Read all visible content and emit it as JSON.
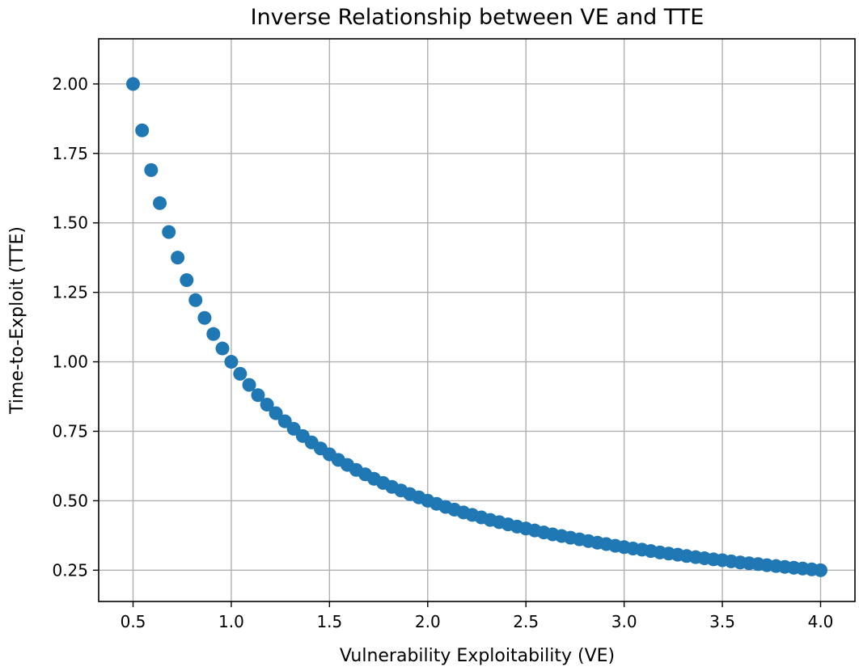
{
  "chart_data": {
    "type": "scatter",
    "title": "Inverse Relationship between VE and TTE",
    "xlabel": "Vulnerability Exploitability (VE)",
    "ylabel": "Time-to-Exploit (TTE)",
    "xlim": [
      0.325,
      4.175
    ],
    "ylim": [
      0.1375,
      2.1625
    ],
    "xticks": [
      0.5,
      1.0,
      1.5,
      2.0,
      2.5,
      3.0,
      3.5,
      4.0
    ],
    "xtick_labels": [
      "0.5",
      "1.0",
      "1.5",
      "2.0",
      "2.5",
      "3.0",
      "3.5",
      "4.0"
    ],
    "yticks": [
      0.25,
      0.5,
      0.75,
      1.0,
      1.25,
      1.5,
      1.75,
      2.0
    ],
    "ytick_labels": [
      "0.25",
      "0.50",
      "0.75",
      "1.00",
      "1.25",
      "1.50",
      "1.75",
      "2.00"
    ],
    "grid": true,
    "marker_color": "#1f77b4",
    "series": [
      {
        "name": "TTE = 1/VE",
        "x_start": 0.5,
        "x_end": 4.0,
        "count": 78,
        "relation": "y = 1 / x",
        "points": [
          [
            0.5,
            2.0
          ],
          [
            0.546,
            1.833
          ],
          [
            0.592,
            1.69
          ],
          [
            0.636,
            1.571
          ],
          [
            0.682,
            1.467
          ],
          [
            0.727,
            1.375
          ],
          [
            0.773,
            1.294
          ],
          [
            0.818,
            1.222
          ],
          [
            0.864,
            1.158
          ],
          [
            0.909,
            1.1
          ],
          [
            0.955,
            1.048
          ],
          [
            1.0,
            1.0
          ],
          [
            1.045,
            0.957
          ],
          [
            1.091,
            0.917
          ],
          [
            1.136,
            0.88
          ],
          [
            1.182,
            0.846
          ],
          [
            1.227,
            0.815
          ],
          [
            1.273,
            0.786
          ],
          [
            1.318,
            0.759
          ],
          [
            1.364,
            0.733
          ],
          [
            1.409,
            0.71
          ],
          [
            1.455,
            0.688
          ],
          [
            1.5,
            0.667
          ],
          [
            1.545,
            0.647
          ],
          [
            1.591,
            0.629
          ],
          [
            1.636,
            0.611
          ],
          [
            1.682,
            0.595
          ],
          [
            1.727,
            0.579
          ],
          [
            1.773,
            0.564
          ],
          [
            1.818,
            0.55
          ],
          [
            1.864,
            0.537
          ],
          [
            1.909,
            0.524
          ],
          [
            1.955,
            0.512
          ],
          [
            2.0,
            0.5
          ],
          [
            2.045,
            0.489
          ],
          [
            2.091,
            0.478
          ],
          [
            2.136,
            0.468
          ],
          [
            2.182,
            0.458
          ],
          [
            2.227,
            0.449
          ],
          [
            2.273,
            0.44
          ],
          [
            2.318,
            0.431
          ],
          [
            2.364,
            0.423
          ],
          [
            2.409,
            0.415
          ],
          [
            2.455,
            0.407
          ],
          [
            2.5,
            0.4
          ],
          [
            2.545,
            0.393
          ],
          [
            2.591,
            0.386
          ],
          [
            2.636,
            0.379
          ],
          [
            2.682,
            0.373
          ],
          [
            2.727,
            0.367
          ],
          [
            2.773,
            0.361
          ],
          [
            2.818,
            0.355
          ],
          [
            2.864,
            0.349
          ],
          [
            2.909,
            0.344
          ],
          [
            2.955,
            0.338
          ],
          [
            3.0,
            0.333
          ],
          [
            3.045,
            0.328
          ],
          [
            3.091,
            0.324
          ],
          [
            3.136,
            0.319
          ],
          [
            3.182,
            0.314
          ],
          [
            3.227,
            0.31
          ],
          [
            3.273,
            0.306
          ],
          [
            3.318,
            0.301
          ],
          [
            3.364,
            0.297
          ],
          [
            3.409,
            0.293
          ],
          [
            3.455,
            0.289
          ],
          [
            3.5,
            0.286
          ],
          [
            3.545,
            0.282
          ],
          [
            3.591,
            0.278
          ],
          [
            3.636,
            0.275
          ],
          [
            3.682,
            0.272
          ],
          [
            3.727,
            0.268
          ],
          [
            3.773,
            0.265
          ],
          [
            3.818,
            0.262
          ],
          [
            3.864,
            0.259
          ],
          [
            3.909,
            0.256
          ],
          [
            3.955,
            0.253
          ],
          [
            4.0,
            0.25
          ]
        ]
      }
    ]
  }
}
